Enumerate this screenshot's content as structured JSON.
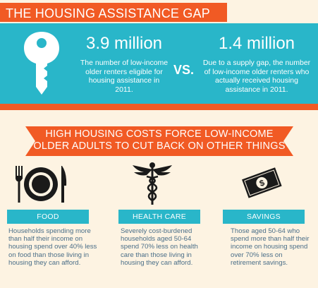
{
  "header": {
    "title": "THE HOUSING ASSISTANCE GAP"
  },
  "stats": {
    "left_value": "3.9 million",
    "left_desc": "The number of low-income older renters eligible for housing assistance in 2011.",
    "vs_label": "VS.",
    "right_value": "1.4 million",
    "right_desc": "Due to a supply gap, the number of low-income older renters who actually received housing  assistance in 2011."
  },
  "ribbon": {
    "line1": "HIGH HOUSING COSTS FORCE LOW-INCOME",
    "line2": "OLDER ADULTS TO CUT BACK ON OTHER THINGS"
  },
  "categories": [
    {
      "label": "FOOD",
      "icon": "fork-plate-knife-icon",
      "text": "Households spending more than half their income on housing spend over 40% less on food than those living in housing they can afford."
    },
    {
      "label": "HEALTH CARE",
      "icon": "caduceus-icon",
      "text": "Severely cost-burdened households aged 50-64 spend 70% less on health care than those living in housing they can afford."
    },
    {
      "label": "SAVINGS",
      "icon": "dollar-bill-icon",
      "text": "Those aged 50-64 who spend more than half their income on housing spend over 70% less on retirement savings."
    }
  ],
  "colors": {
    "orange": "#f15a24",
    "teal": "#29b6c9",
    "cream": "#fdf3e2",
    "text_blue": "#4a6e88"
  }
}
